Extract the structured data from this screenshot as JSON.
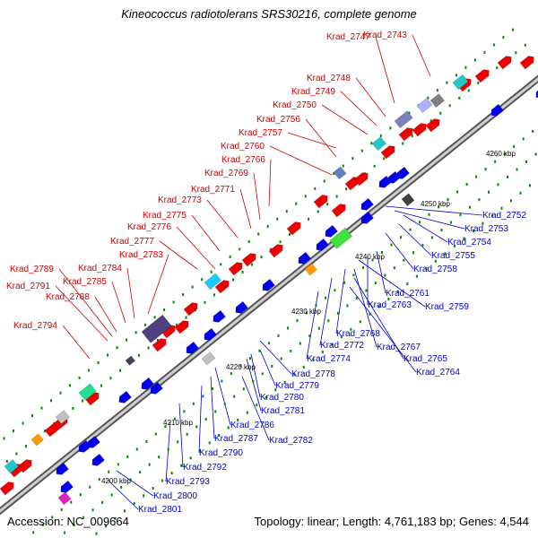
{
  "title": "Kineococcus radiotolerans SRS30216, complete genome",
  "accession": "Accession: NC_009664",
  "summary": "Topology: linear; Length: 4,761,183 bp; Genes: 4,544",
  "kbp_ticks": [
    "4200 kbp",
    "4210 kbp",
    "4220 kbp",
    "4230 kbp",
    "4240 kbp",
    "4250 kbp",
    "4260 kbp"
  ],
  "colors": {
    "forward_label": "#cc0000",
    "reverse_label": "#0000cc",
    "forward_gene": "#ee0000",
    "reverse_gene": "#0000ee",
    "backbone": "#909090",
    "tick": "#008800"
  },
  "forward_labels": [
    "Krad_2743",
    "Krad_2747",
    "Krad_2748",
    "Krad_2749",
    "Krad_2750",
    "Krad_2756",
    "Krad_2757",
    "Krad_2760",
    "Krad_2766",
    "Krad_2769",
    "Krad_2771",
    "Krad_2773",
    "Krad_2775",
    "Krad_2776",
    "Krad_2777",
    "Krad_2783",
    "Krad_2784",
    "Krad_2785",
    "Krad_2788",
    "Krad_2789",
    "Krad_2791",
    "Krad_2794"
  ],
  "reverse_labels": [
    "Krad_2752",
    "Krad_2753",
    "Krad_2754",
    "Krad_2755",
    "Krad_2758",
    "Krad_2761",
    "Krad_2763",
    "Krad_2759",
    "Krad_2768",
    "Krad_2772",
    "Krad_2767",
    "Krad_2774",
    "Krad_2765",
    "Krad_2764",
    "Krad_2778",
    "Krad_2779",
    "Krad_2780",
    "Krad_2781",
    "Krad_2786",
    "Krad_2782",
    "Krad_2787",
    "Krad_2790",
    "Krad_2792",
    "Krad_2793",
    "Krad_2800",
    "Krad_2801"
  ]
}
